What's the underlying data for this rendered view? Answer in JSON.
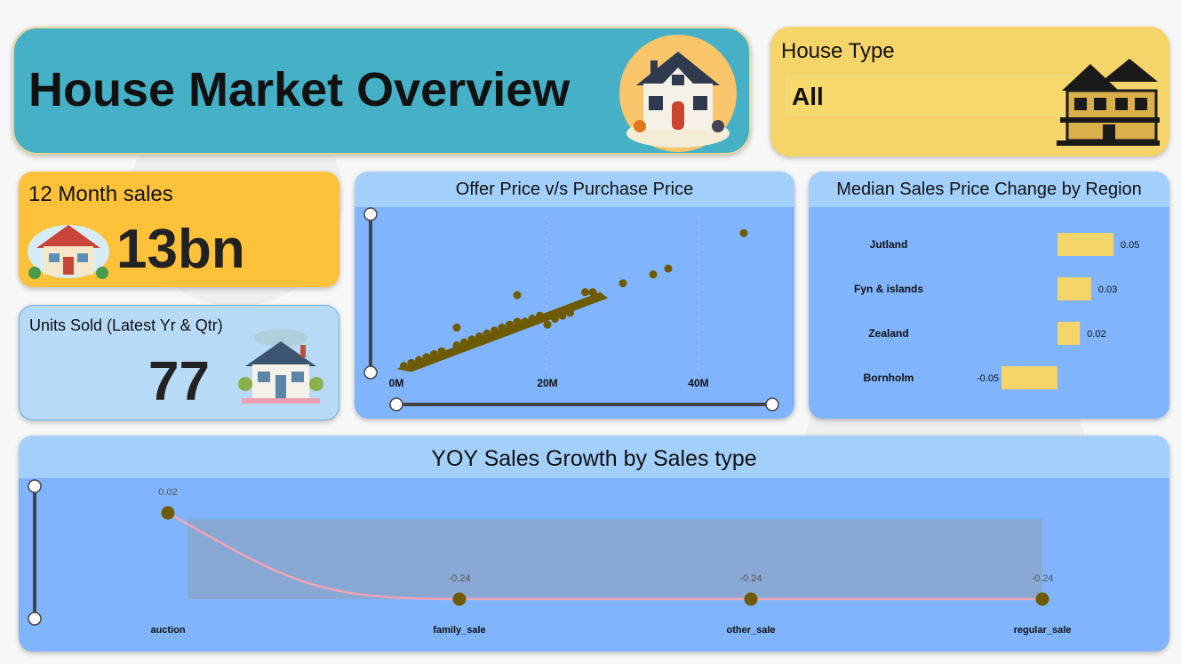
{
  "header": {
    "title": "House Market Overview"
  },
  "house_type": {
    "label": "House Type",
    "selected": "All"
  },
  "kpi_sales": {
    "label": "12 Month sales",
    "value": "13bn"
  },
  "kpi_units": {
    "label": "Units Sold (Latest Yr & Qtr)",
    "value": "77"
  },
  "colors": {
    "header_bg": "#46b0c6",
    "house_type_bg": "#f5d469",
    "sales_bg": "#fec13a",
    "units_bg": "#b7daf7",
    "chart_bg": "#80b4fc",
    "chart_header_bg": "#a3cffb",
    "bar": "#f5d469",
    "point": "#6e5b00",
    "line": "#f2a5b4"
  },
  "chart_data": [
    {
      "type": "scatter",
      "title": "Offer Price v/s Purchase Price",
      "xlabel": "",
      "ylabel": "",
      "x_ticks": [
        "0M",
        "20M",
        "40M"
      ],
      "xlim": [
        0,
        50
      ],
      "ylim": [
        0,
        50
      ],
      "points": [
        [
          46,
          46
        ],
        [
          34,
          32
        ],
        [
          36,
          34
        ],
        [
          30,
          29
        ],
        [
          25,
          26
        ],
        [
          26,
          26
        ],
        [
          16,
          25
        ],
        [
          8,
          14
        ],
        [
          20,
          15
        ],
        [
          21,
          17
        ],
        [
          22,
          18
        ],
        [
          23,
          19
        ],
        [
          18,
          17
        ],
        [
          15,
          15
        ],
        [
          12,
          12
        ],
        [
          10,
          10
        ],
        [
          8,
          8
        ],
        [
          6,
          6
        ],
        [
          4,
          4
        ],
        [
          2,
          2
        ],
        [
          1,
          1
        ],
        [
          14,
          14
        ],
        [
          16,
          16
        ],
        [
          17,
          16
        ],
        [
          19,
          18
        ],
        [
          11,
          11
        ],
        [
          9,
          9
        ],
        [
          5,
          5
        ],
        [
          3,
          3
        ],
        [
          13,
          13
        ]
      ]
    },
    {
      "type": "bar",
      "title": "Median Sales Price Change by Region",
      "categories": [
        "Jutland",
        "Fyn & islands",
        "Zealand",
        "Bornholm"
      ],
      "values": [
        0.05,
        0.03,
        0.02,
        -0.05
      ],
      "value_labels": [
        "0.05",
        "0.03",
        "0.02",
        "-0.05"
      ]
    },
    {
      "type": "line",
      "title": "YOY Sales Growth by Sales type",
      "categories": [
        "auction",
        "family_sale",
        "other_sale",
        "regular_sale"
      ],
      "values": [
        0.02,
        -0.24,
        -0.24,
        -0.24
      ],
      "value_labels": [
        "0.02",
        "-0.24",
        "-0.24",
        "-0.24"
      ]
    }
  ]
}
